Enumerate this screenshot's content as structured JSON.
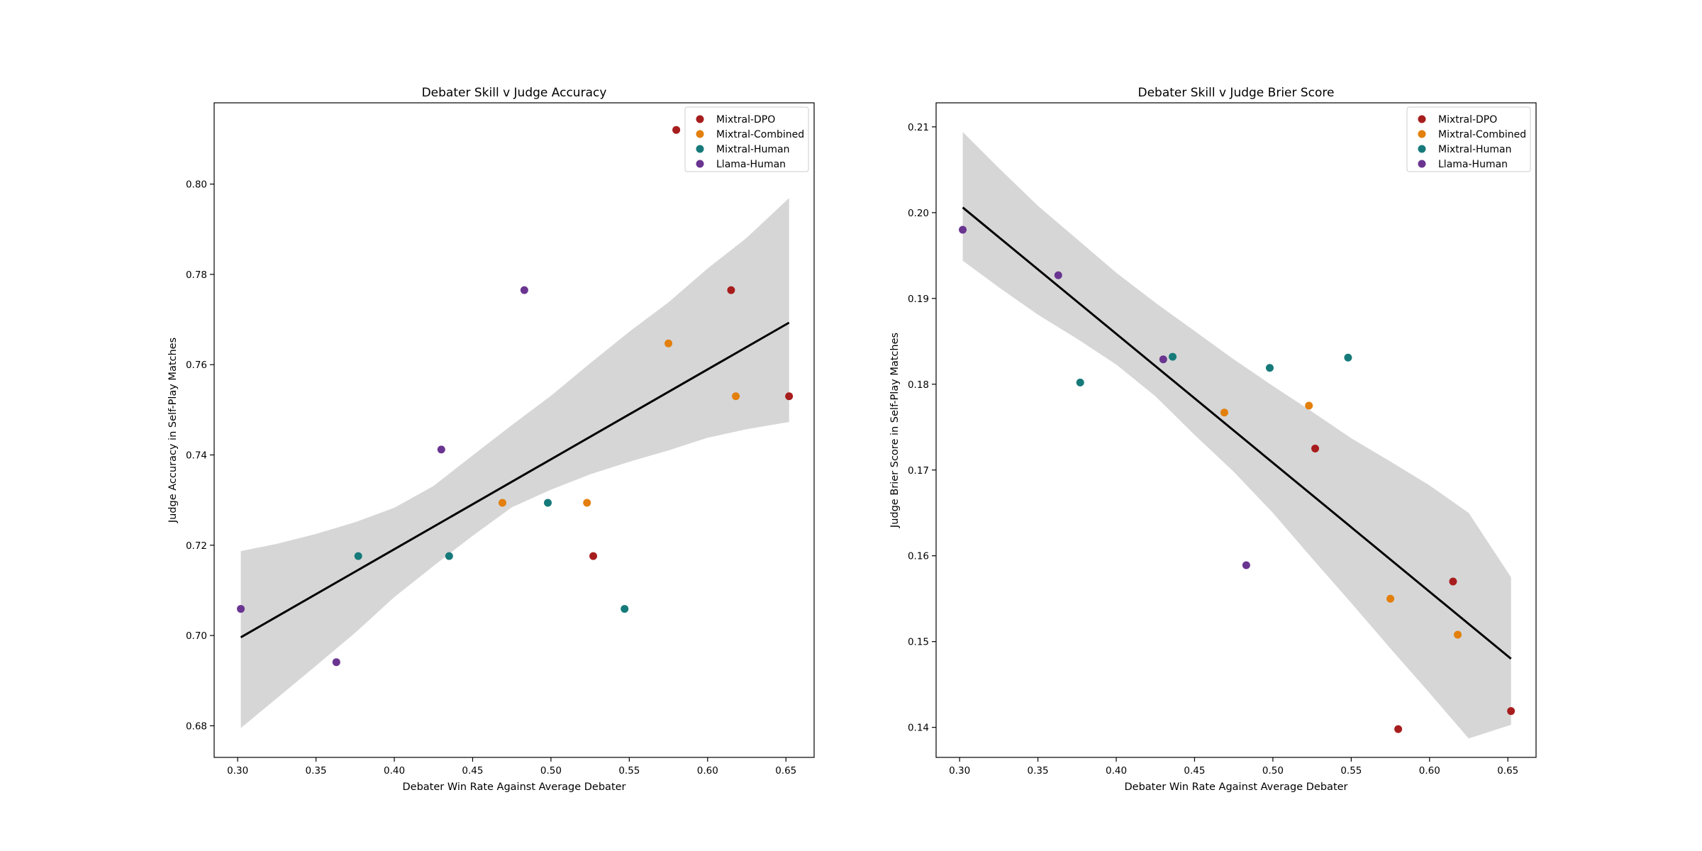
{
  "chart_data": [
    {
      "type": "scatter",
      "title": "Debater Skill v Judge Accuracy",
      "xlabel": "Debater Win Rate Against Average Debater",
      "ylabel": "Judge Accuracy in Self-Play Matches",
      "xlim": [
        0.285,
        0.668
      ],
      "ylim": [
        0.673,
        0.818
      ],
      "xticks": [
        0.3,
        0.35,
        0.4,
        0.45,
        0.5,
        0.55,
        0.6,
        0.65
      ],
      "xtick_labels": [
        "0.30",
        "0.35",
        "0.40",
        "0.45",
        "0.50",
        "0.55",
        "0.60",
        "0.65"
      ],
      "yticks": [
        0.68,
        0.7,
        0.72,
        0.74,
        0.76,
        0.78,
        0.8
      ],
      "ytick_labels": [
        "0.68",
        "0.70",
        "0.72",
        "0.74",
        "0.76",
        "0.78",
        "0.80"
      ],
      "grid": false,
      "legend_position": "top-right",
      "series": [
        {
          "name": "Mixtral-DPO",
          "color": "#a71d1d",
          "points": [
            [
              0.58,
              0.812
            ],
            [
              0.615,
              0.7765
            ],
            [
              0.652,
              0.753
            ],
            [
              0.527,
              0.7176
            ]
          ]
        },
        {
          "name": "Mixtral-Combined",
          "color": "#e37f0c",
          "points": [
            [
              0.575,
              0.7647
            ],
            [
              0.618,
              0.753
            ],
            [
              0.469,
              0.7294
            ],
            [
              0.523,
              0.7294
            ]
          ]
        },
        {
          "name": "Mixtral-Human",
          "color": "#177a7a",
          "points": [
            [
              0.377,
              0.7176
            ],
            [
              0.435,
              0.7176
            ],
            [
              0.498,
              0.7294
            ],
            [
              0.547,
              0.7059
            ]
          ]
        },
        {
          "name": "Llama-Human",
          "color": "#6a3590",
          "points": [
            [
              0.302,
              0.7059
            ],
            [
              0.363,
              0.6941
            ],
            [
              0.43,
              0.7412
            ],
            [
              0.483,
              0.7765
            ]
          ]
        }
      ],
      "regression": {
        "color": "#000000",
        "line": [
          [
            0.302,
            0.6996
          ],
          [
            0.652,
            0.7693
          ]
        ],
        "ci_band": {
          "x": [
            0.302,
            0.325,
            0.35,
            0.375,
            0.4,
            0.425,
            0.45,
            0.475,
            0.5,
            0.525,
            0.55,
            0.575,
            0.6,
            0.625,
            0.652
          ],
          "upper": [
            0.7187,
            0.7203,
            0.7225,
            0.7251,
            0.7283,
            0.7331,
            0.7399,
            0.7466,
            0.7531,
            0.7603,
            0.7673,
            0.7738,
            0.7813,
            0.7881,
            0.7969
          ],
          "lower": [
            0.6795,
            0.6861,
            0.6933,
            0.7006,
            0.7085,
            0.7154,
            0.7221,
            0.7284,
            0.7323,
            0.7357,
            0.7385,
            0.741,
            0.7438,
            0.7457,
            0.7473
          ]
        }
      }
    },
    {
      "type": "scatter",
      "title": "Debater Skill v Judge Brier Score",
      "xlabel": "Debater Win Rate Against Average Debater",
      "ylabel": "Judge Brier Score in Self-Play Matches",
      "xlim": [
        0.285,
        0.668
      ],
      "ylim": [
        0.1365,
        0.2128
      ],
      "xticks": [
        0.3,
        0.35,
        0.4,
        0.45,
        0.5,
        0.55,
        0.6,
        0.65
      ],
      "xtick_labels": [
        "0.30",
        "0.35",
        "0.40",
        "0.45",
        "0.50",
        "0.55",
        "0.60",
        "0.65"
      ],
      "yticks": [
        0.14,
        0.15,
        0.16,
        0.17,
        0.18,
        0.19,
        0.2,
        0.21
      ],
      "ytick_labels": [
        "0.14",
        "0.15",
        "0.16",
        "0.17",
        "0.18",
        "0.19",
        "0.20",
        "0.21"
      ],
      "grid": false,
      "legend_position": "top-right",
      "series": [
        {
          "name": "Mixtral-DPO",
          "color": "#a71d1d",
          "points": [
            [
              0.527,
              0.1725
            ],
            [
              0.615,
              0.157
            ],
            [
              0.58,
              0.1398
            ],
            [
              0.652,
              0.1419
            ]
          ]
        },
        {
          "name": "Mixtral-Combined",
          "color": "#e37f0c",
          "points": [
            [
              0.469,
              0.1767
            ],
            [
              0.523,
              0.1775
            ],
            [
              0.575,
              0.155
            ],
            [
              0.618,
              0.1508
            ]
          ]
        },
        {
          "name": "Mixtral-Human",
          "color": "#177a7a",
          "points": [
            [
              0.377,
              0.1802
            ],
            [
              0.436,
              0.1832
            ],
            [
              0.498,
              0.1819
            ],
            [
              0.548,
              0.1831
            ]
          ]
        },
        {
          "name": "Llama-Human",
          "color": "#6a3590",
          "points": [
            [
              0.302,
              0.198
            ],
            [
              0.363,
              0.1927
            ],
            [
              0.43,
              0.1829
            ],
            [
              0.483,
              0.1589
            ]
          ]
        }
      ],
      "regression": {
        "color": "#000000",
        "line": [
          [
            0.302,
            0.2006
          ],
          [
            0.652,
            0.148
          ]
        ],
        "ci_band": {
          "x": [
            0.302,
            0.325,
            0.35,
            0.375,
            0.4,
            0.425,
            0.45,
            0.475,
            0.5,
            0.525,
            0.55,
            0.575,
            0.6,
            0.625,
            0.652
          ],
          "upper": [
            0.2094,
            0.2052,
            0.2008,
            0.1969,
            0.193,
            0.1895,
            0.1862,
            0.1829,
            0.1798,
            0.1768,
            0.1737,
            0.171,
            0.1682,
            0.165,
            0.1575
          ],
          "lower": [
            0.1944,
            0.1913,
            0.1881,
            0.1853,
            0.1823,
            0.1786,
            0.1741,
            0.1698,
            0.165,
            0.1597,
            0.1545,
            0.1492,
            0.144,
            0.1387,
            0.1403
          ]
        }
      }
    }
  ]
}
